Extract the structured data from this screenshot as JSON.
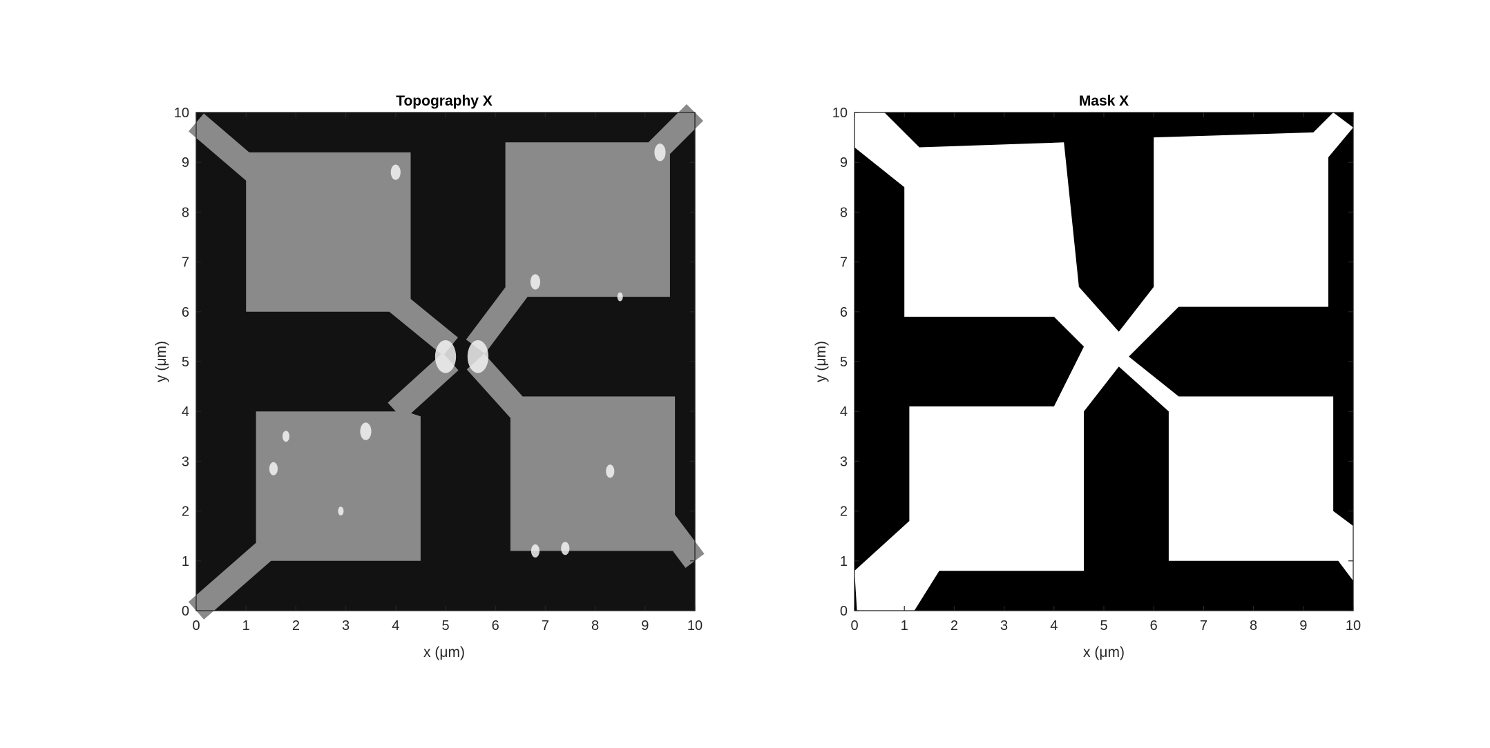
{
  "chart_data": [
    {
      "type": "heatmap",
      "title": "Topography X",
      "xlabel": "x (μm)",
      "ylabel": "y (μm)",
      "xlim": [
        0,
        10
      ],
      "ylim": [
        10,
        0
      ],
      "xticks": [
        "0",
        "1",
        "2",
        "3",
        "4",
        "5",
        "6",
        "7",
        "8",
        "9",
        "10"
      ],
      "yticks": [
        "0",
        "1",
        "2",
        "3",
        "4",
        "5",
        "6",
        "7",
        "8",
        "9",
        "10"
      ],
      "colormap": "gray",
      "colors": {
        "background": "#121212",
        "pads": "#8a8a8a",
        "bright_spots": "#f2f2f2"
      },
      "features": {
        "pads": [
          [
            [
              1.2,
              1.0
            ],
            [
              4.5,
              1.0
            ],
            [
              4.5,
              3.9
            ],
            [
              4.2,
              4.0
            ],
            [
              1.2,
              4.0
            ]
          ],
          [
            [
              6.3,
              1.2
            ],
            [
              9.6,
              1.2
            ],
            [
              9.6,
              4.3
            ],
            [
              6.3,
              4.3
            ],
            [
              6.3,
              3.8
            ]
          ],
          [
            [
              1.0,
              6.0
            ],
            [
              4.3,
              6.0
            ],
            [
              4.3,
              9.2
            ],
            [
              1.0,
              9.2
            ]
          ],
          [
            [
              6.2,
              6.3
            ],
            [
              9.5,
              6.3
            ],
            [
              9.5,
              9.4
            ],
            [
              6.2,
              9.4
            ]
          ]
        ],
        "leads": [
          [
            [
              0,
              0
            ],
            [
              1.6,
              1.4
            ]
          ],
          [
            [
              10,
              1.0
            ],
            [
              9.4,
              1.8
            ]
          ],
          [
            [
              0,
              9.8
            ],
            [
              1.4,
              8.6
            ]
          ],
          [
            [
              9.0,
              9.0
            ],
            [
              10,
              10
            ]
          ],
          [
            [
              4.0,
              4.0
            ],
            [
              5.1,
              5.0
            ]
          ],
          [
            [
              6.5,
              4.0
            ],
            [
              5.6,
              5.0
            ]
          ],
          [
            [
              4.0,
              6.2
            ],
            [
              5.1,
              5.3
            ]
          ],
          [
            [
              6.5,
              6.5
            ],
            [
              5.6,
              5.3
            ]
          ]
        ],
        "spots": [
          [
            5.0,
            5.1,
            0.3
          ],
          [
            5.65,
            5.1,
            0.3
          ],
          [
            3.4,
            3.6,
            0.16
          ],
          [
            1.55,
            2.85,
            0.12
          ],
          [
            1.8,
            3.5,
            0.1
          ],
          [
            6.8,
            1.2,
            0.12
          ],
          [
            7.4,
            1.25,
            0.12
          ],
          [
            8.3,
            2.8,
            0.12
          ],
          [
            6.8,
            6.6,
            0.14
          ],
          [
            4.0,
            8.8,
            0.14
          ],
          [
            9.3,
            9.2,
            0.16
          ],
          [
            2.9,
            2.0,
            0.08
          ],
          [
            8.5,
            6.3,
            0.08
          ]
        ]
      }
    },
    {
      "type": "heatmap",
      "title": "Mask X",
      "xlabel": "x (μm)",
      "ylabel": "y (μm)",
      "xlim": [
        0,
        10
      ],
      "ylim": [
        10,
        0
      ],
      "xticks": [
        "0",
        "1",
        "2",
        "3",
        "4",
        "5",
        "6",
        "7",
        "8",
        "9",
        "10"
      ],
      "yticks": [
        "0",
        "1",
        "2",
        "3",
        "4",
        "5",
        "6",
        "7",
        "8",
        "9",
        "10"
      ],
      "colormap": "binary",
      "colors": {
        "background": "#000000",
        "foreground": "#ffffff"
      },
      "features": {
        "regions": [
          [
            [
              0.05,
              0.0
            ],
            [
              1.2,
              0.0
            ],
            [
              1.7,
              0.8
            ],
            [
              4.6,
              0.8
            ],
            [
              4.6,
              4.0
            ],
            [
              5.3,
              4.9
            ],
            [
              6.3,
              4.0
            ],
            [
              6.3,
              1.0
            ],
            [
              9.7,
              1.0
            ],
            [
              10.0,
              0.6
            ],
            [
              10.0,
              1.7
            ],
            [
              9.6,
              2.0
            ],
            [
              9.6,
              4.3
            ],
            [
              6.5,
              4.3
            ],
            [
              5.5,
              5.1
            ],
            [
              6.5,
              6.1
            ],
            [
              9.5,
              6.1
            ],
            [
              9.5,
              9.1
            ],
            [
              10.0,
              9.7
            ],
            [
              9.6,
              10.0
            ],
            [
              9.2,
              9.6
            ],
            [
              6.0,
              9.5
            ],
            [
              6.0,
              6.5
            ],
            [
              5.3,
              5.6
            ],
            [
              4.5,
              6.5
            ],
            [
              4.2,
              9.4
            ],
            [
              1.3,
              9.3
            ],
            [
              0.6,
              10.0
            ],
            [
              0.0,
              10.0
            ],
            [
              0.0,
              9.3
            ],
            [
              1.0,
              8.5
            ],
            [
              1.0,
              5.9
            ],
            [
              4.0,
              5.9
            ],
            [
              4.6,
              5.3
            ],
            [
              4.0,
              4.1
            ],
            [
              1.1,
              4.1
            ],
            [
              1.1,
              1.8
            ],
            [
              0.0,
              0.8
            ]
          ]
        ]
      }
    }
  ]
}
